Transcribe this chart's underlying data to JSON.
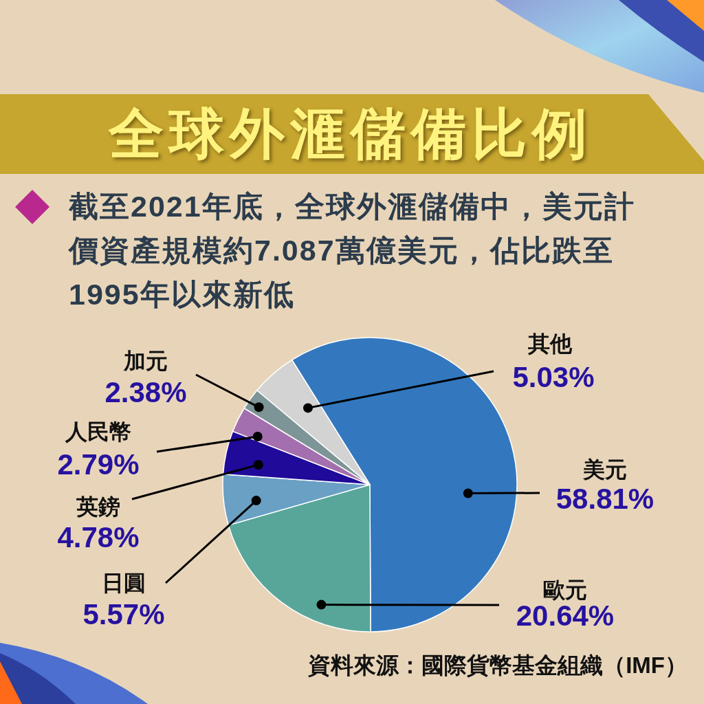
{
  "chart_data": {
    "type": "pie",
    "title": "全球外滙儲備比例",
    "subtitle": "截至2021年底，全球外滙儲備中，美元計價資產規模約7.087萬億美元，佔比跌至1995年以來新低",
    "categories": [
      "美元",
      "歐元",
      "日圓",
      "英鎊",
      "人民幣",
      "加元",
      "其他"
    ],
    "values": [
      58.81,
      20.64,
      5.57,
      4.78,
      2.79,
      2.38,
      5.03
    ],
    "colors": [
      "#3378be",
      "#58a699",
      "#6aa0c4",
      "#1f0a99",
      "#a46fae",
      "#7e9597",
      "#d3d3d3"
    ],
    "value_labels": [
      "58.81%",
      "20.64%",
      "5.57%",
      "4.78%",
      "2.79%",
      "2.38%",
      "5.03%"
    ],
    "annotations": [
      "資料來源：國際貨幣基金組織（IMF）"
    ]
  }
}
